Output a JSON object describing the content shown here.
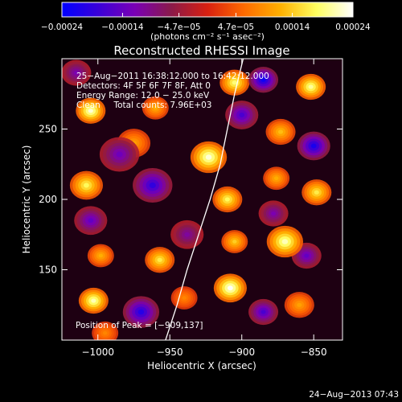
{
  "chart_data": {
    "type": "heatmap",
    "title": "Reconstructed RHESSI Image",
    "xlabel": "Heliocentric X (arcsec)",
    "ylabel": "Heliocentric Y (arcsec)",
    "xlim": [
      -1025,
      -830
    ],
    "ylim": [
      100,
      300
    ],
    "x_ticks": [
      -1000,
      -950,
      -900,
      -850
    ],
    "y_ticks": [
      150,
      200,
      250
    ],
    "x_tick_labels": [
      "−1000",
      "−950",
      "−900",
      "−850"
    ],
    "y_tick_labels": [
      "150",
      "200",
      "250"
    ],
    "colorbar": {
      "unit": "(photons cm⁻² s⁻¹ asec⁻²)",
      "tick_values": [
        -0.00024,
        -0.00014,
        -4.7e-05,
        4.7e-05,
        0.00014,
        0.00024
      ],
      "tick_labels": [
        "−0.00024",
        "−0.00014",
        "−4.7e−05",
        "4.7e−05",
        "0.00014",
        "0.00024"
      ],
      "range": [
        -0.00024,
        0.00024
      ],
      "colors": [
        "#0000ff",
        "#3a00d8",
        "#7a00b5",
        "#8a1a4a",
        "#d82010",
        "#ff6a00",
        "#ffb000",
        "#ffff60",
        "#ffffff"
      ]
    },
    "annotations": {
      "time_range": "25−Aug−2011 16:38:12.000 to 16:42:12.000",
      "detectors": "Detectors: 4F 5F 6F 7F 8F, Att 0",
      "energy_range": "Energy Range: 12.0 − 25.0 keV",
      "clean_counts": "Clean     Total counts: 7.96E+03",
      "peak_position": "Position of Peak = [−909,137]"
    },
    "limb_curve": {
      "x": [
        -953,
        -945,
        -938,
        -930,
        -922,
        -915,
        -910,
        -905,
        -899
      ],
      "y": [
        100,
        125,
        150,
        175,
        200,
        225,
        250,
        275,
        300
      ]
    },
    "emission_blobs": [
      {
        "x": -1005,
        "y": 263,
        "level": 0.95,
        "r": 9
      },
      {
        "x": -1008,
        "y": 210,
        "level": 0.75,
        "r": 10
      },
      {
        "x": -998,
        "y": 160,
        "level": 0.5,
        "r": 8
      },
      {
        "x": -1003,
        "y": 128,
        "level": 0.9,
        "r": 9
      },
      {
        "x": -975,
        "y": 240,
        "level": 0.45,
        "r": 10
      },
      {
        "x": -960,
        "y": 265,
        "level": 0.5,
        "r": 8
      },
      {
        "x": -957,
        "y": 157,
        "level": 0.7,
        "r": 9
      },
      {
        "x": -940,
        "y": 130,
        "level": 0.35,
        "r": 8
      },
      {
        "x": -923,
        "y": 230,
        "level": 0.95,
        "r": 11
      },
      {
        "x": -910,
        "y": 200,
        "level": 0.75,
        "r": 9
      },
      {
        "x": -908,
        "y": 137,
        "level": 1.0,
        "r": 10
      },
      {
        "x": -905,
        "y": 170,
        "level": 0.6,
        "r": 8
      },
      {
        "x": -905,
        "y": 283,
        "level": 0.8,
        "r": 9
      },
      {
        "x": -873,
        "y": 248,
        "level": 0.55,
        "r": 9
      },
      {
        "x": -870,
        "y": 170,
        "level": 0.9,
        "r": 11
      },
      {
        "x": -876,
        "y": 215,
        "level": 0.5,
        "r": 8
      },
      {
        "x": -852,
        "y": 280,
        "level": 0.85,
        "r": 9
      },
      {
        "x": -848,
        "y": 205,
        "level": 0.7,
        "r": 9
      },
      {
        "x": -860,
        "y": 125,
        "level": 0.45,
        "r": 9
      },
      {
        "x": -995,
        "y": 105,
        "level": 0.35,
        "r": 8
      },
      {
        "x": -985,
        "y": 232,
        "level": -0.55,
        "r": 12
      },
      {
        "x": -962,
        "y": 210,
        "level": -0.8,
        "r": 12
      },
      {
        "x": -1005,
        "y": 185,
        "level": -0.6,
        "r": 10
      },
      {
        "x": -970,
        "y": 120,
        "level": -0.85,
        "r": 11
      },
      {
        "x": -938,
        "y": 175,
        "level": -0.45,
        "r": 10
      },
      {
        "x": -900,
        "y": 260,
        "level": -0.7,
        "r": 10
      },
      {
        "x": -885,
        "y": 285,
        "level": -0.95,
        "r": 9
      },
      {
        "x": -850,
        "y": 238,
        "level": -0.9,
        "r": 10
      },
      {
        "x": -855,
        "y": 160,
        "level": -0.6,
        "r": 9
      },
      {
        "x": -885,
        "y": 120,
        "level": -0.7,
        "r": 9
      },
      {
        "x": -878,
        "y": 190,
        "level": -0.5,
        "r": 9
      },
      {
        "x": -1015,
        "y": 290,
        "level": -0.5,
        "r": 9
      }
    ]
  },
  "footer": {
    "timestamp": "24−Aug−2013 07:43"
  }
}
